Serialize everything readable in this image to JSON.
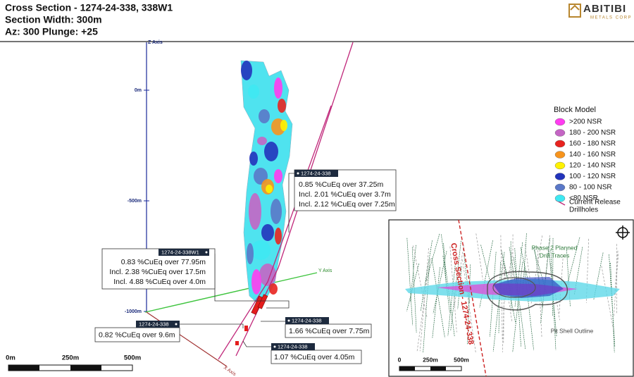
{
  "header": {
    "title": "Cross Section - 1274-24-338, 338W1",
    "section_width": "Section Width: 300m",
    "orientation": "Az: 300 Plunge: +25"
  },
  "logo": {
    "name": "ABITIBI",
    "tagline": "METALS CORP"
  },
  "axes": {
    "z_axis": "Z Axis",
    "z_labels": [
      "0m",
      "-500m",
      "-1000m"
    ],
    "y_axis": "Y Axis",
    "x_axis": "X Axis"
  },
  "legend": {
    "title": "Block Model",
    "items": [
      ">200 NSR",
      "180 - 200 NSR",
      "160 - 180 NSR",
      "140 - 160 NSR",
      "120 - 140 NSR",
      "100 - 120 NSR",
      "80 - 100 NSR",
      "<80 NSR"
    ],
    "drillholes": [
      "Current Release",
      "Drillholes"
    ]
  },
  "callouts": [
    {
      "hole": "1274-24-338",
      "lines": [
        "0.85 %CuEq over 37.25m",
        "Incl. 2.01 %CuEq over 3.7m",
        "Incl. 2.12 %CuEq over 7.25m"
      ]
    },
    {
      "hole": "1274-24-338W1",
      "lines": [
        "0.83 %CuEq over 77.95m",
        "Incl. 2.38 %CuEq over 17.5m",
        "Incl. 4.88 %CuEq over 4.0m"
      ]
    },
    {
      "hole": "1274-24-338",
      "lines": [
        "0.82 %CuEq over 9.6m"
      ]
    },
    {
      "hole": "1274-24-338",
      "lines": [
        "1.66 %CuEq over 7.75m"
      ]
    },
    {
      "hole": "1274-24-338",
      "lines": [
        "1.07 %CuEq over 4.05m"
      ]
    }
  ],
  "scale_bar": {
    "labels": [
      "0m",
      "250m",
      "500m"
    ]
  },
  "inset": {
    "planned": [
      "Phase 2 Planned",
      "Drill Traces"
    ],
    "section_label": "Cross Section - 1274-24-338",
    "pit_shell": "Pit Shell Outline",
    "scale_labels": [
      "0",
      "250m",
      "500m"
    ]
  }
}
